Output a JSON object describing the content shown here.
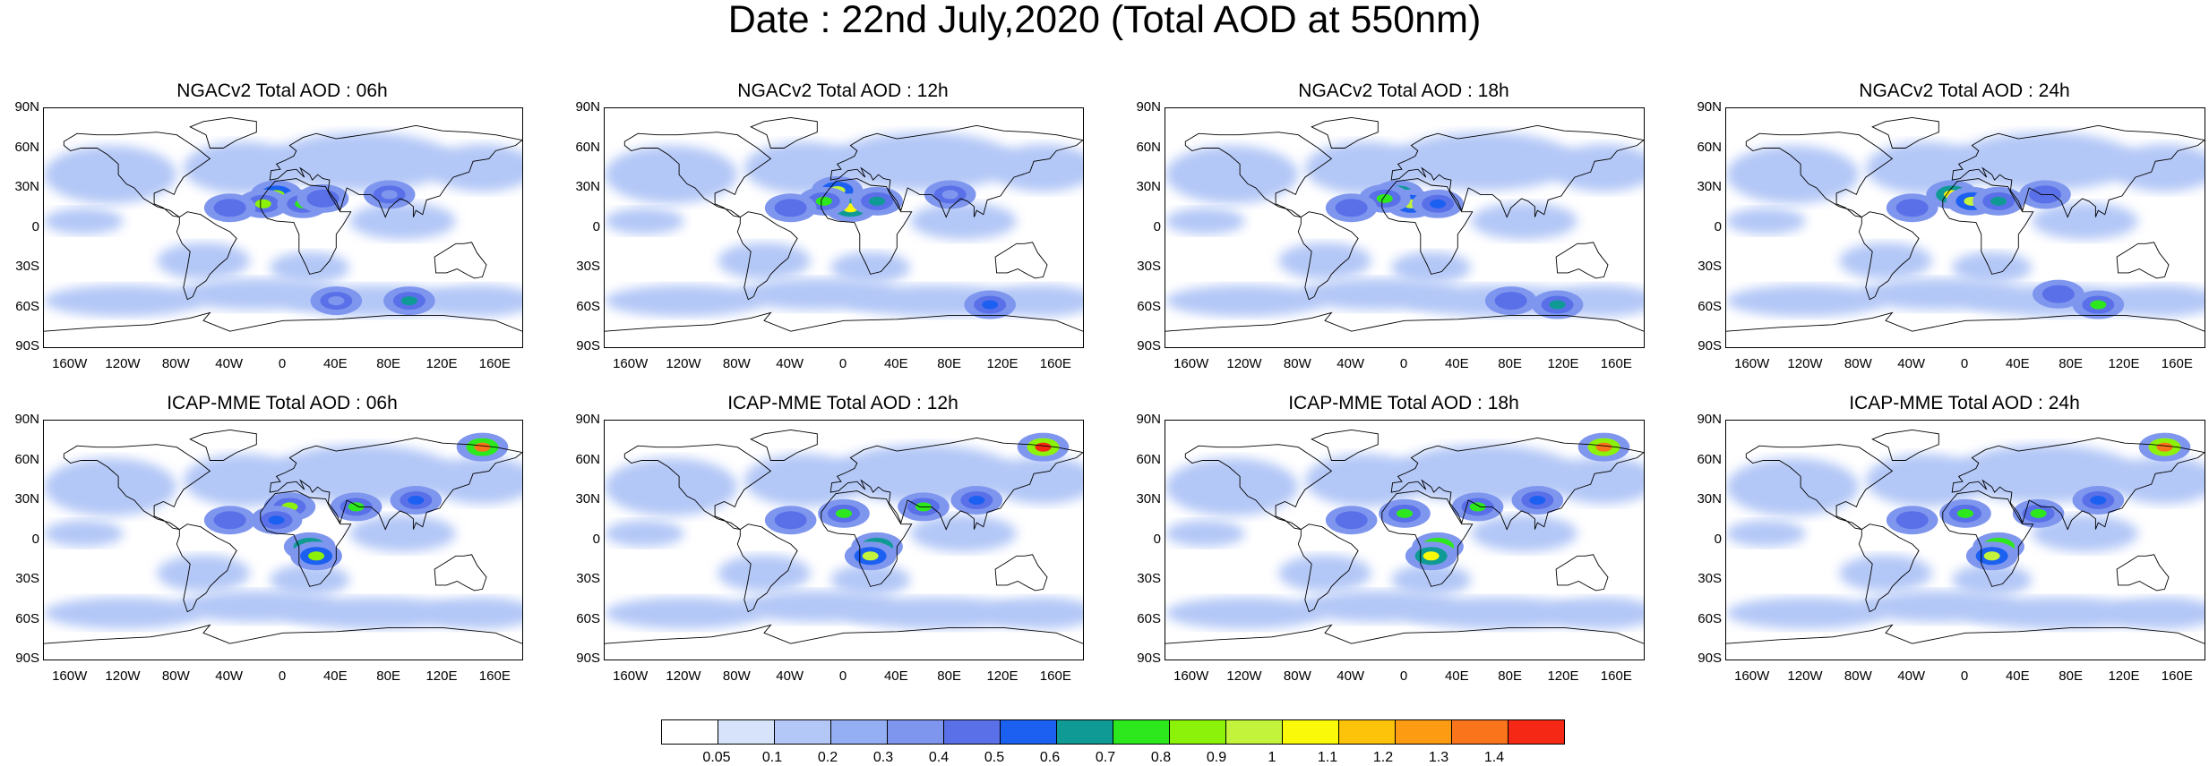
{
  "title": "Date : 22nd July,2020 (Total AOD at 550nm)",
  "panels": [
    {
      "title": "NGACv2 Total AOD : 06h",
      "hotspots": [
        {
          "lon": -5,
          "lat": 25,
          "v": 0.85
        },
        {
          "lon": -15,
          "lat": 18,
          "v": 0.8
        },
        {
          "lon": 15,
          "lat": 18,
          "v": 0.75
        },
        {
          "lon": -40,
          "lat": 15,
          "v": 0.45
        },
        {
          "lon": 30,
          "lat": 22,
          "v": 0.4
        },
        {
          "lon": 80,
          "lat": 25,
          "v": 0.35
        },
        {
          "lon": 95,
          "lat": -55,
          "v": 0.6
        },
        {
          "lon": 40,
          "lat": -55,
          "v": 0.3
        }
      ]
    },
    {
      "title": "NGACv2 Total AOD : 12h",
      "hotspots": [
        {
          "lon": -5,
          "lat": 28,
          "v": 0.95
        },
        {
          "lon": 5,
          "lat": 15,
          "v": 1.0
        },
        {
          "lon": -15,
          "lat": 20,
          "v": 0.7
        },
        {
          "lon": 25,
          "lat": 20,
          "v": 0.6
        },
        {
          "lon": -40,
          "lat": 15,
          "v": 0.45
        },
        {
          "lon": 80,
          "lat": 25,
          "v": 0.3
        },
        {
          "lon": 110,
          "lat": -58,
          "v": 0.55
        }
      ]
    },
    {
      "title": "NGACv2 Total AOD : 18h",
      "hotspots": [
        {
          "lon": -5,
          "lat": 25,
          "v": 1.05
        },
        {
          "lon": 5,
          "lat": 18,
          "v": 0.95
        },
        {
          "lon": -15,
          "lat": 22,
          "v": 0.7
        },
        {
          "lon": 25,
          "lat": 18,
          "v": 0.55
        },
        {
          "lon": -40,
          "lat": 15,
          "v": 0.45
        },
        {
          "lon": 115,
          "lat": -58,
          "v": 0.65
        },
        {
          "lon": 80,
          "lat": -55,
          "v": 0.4
        }
      ]
    },
    {
      "title": "NGACv2 Total AOD : 24h",
      "hotspots": [
        {
          "lon": -10,
          "lat": 25,
          "v": 1.0
        },
        {
          "lon": 5,
          "lat": 20,
          "v": 0.9
        },
        {
          "lon": 25,
          "lat": 20,
          "v": 0.6
        },
        {
          "lon": -40,
          "lat": 15,
          "v": 0.45
        },
        {
          "lon": 60,
          "lat": 25,
          "v": 0.4
        },
        {
          "lon": 100,
          "lat": -58,
          "v": 0.75
        },
        {
          "lon": 70,
          "lat": -50,
          "v": 0.4
        }
      ]
    },
    {
      "title": "ICAP-MME Total AOD : 06h",
      "hotspots": [
        {
          "lon": 20,
          "lat": -5,
          "v": 1.1
        },
        {
          "lon": 25,
          "lat": -12,
          "v": 0.85
        },
        {
          "lon": 5,
          "lat": 25,
          "v": 0.8
        },
        {
          "lon": 55,
          "lat": 25,
          "v": 0.7
        },
        {
          "lon": 150,
          "lat": 70,
          "v": 1.3
        },
        {
          "lon": -5,
          "lat": 15,
          "v": 0.55
        },
        {
          "lon": 100,
          "lat": 30,
          "v": 0.5
        },
        {
          "lon": -40,
          "lat": 15,
          "v": 0.4
        }
      ]
    },
    {
      "title": "ICAP-MME Total AOD : 12h",
      "hotspots": [
        {
          "lon": 25,
          "lat": -5,
          "v": 1.15
        },
        {
          "lon": 20,
          "lat": -12,
          "v": 0.9
        },
        {
          "lon": 0,
          "lat": 20,
          "v": 0.7
        },
        {
          "lon": 60,
          "lat": 25,
          "v": 0.7
        },
        {
          "lon": 150,
          "lat": 70,
          "v": 1.4
        },
        {
          "lon": 100,
          "lat": 30,
          "v": 0.55
        },
        {
          "lon": -40,
          "lat": 15,
          "v": 0.4
        }
      ]
    },
    {
      "title": "ICAP-MME Total AOD : 18h",
      "hotspots": [
        {
          "lon": 25,
          "lat": -5,
          "v": 1.2
        },
        {
          "lon": 20,
          "lat": -12,
          "v": 1.0
        },
        {
          "lon": 0,
          "lat": 20,
          "v": 0.7
        },
        {
          "lon": 55,
          "lat": 25,
          "v": 0.75
        },
        {
          "lon": 150,
          "lat": 70,
          "v": 1.35
        },
        {
          "lon": 100,
          "lat": 30,
          "v": 0.55
        },
        {
          "lon": -40,
          "lat": 15,
          "v": 0.4
        }
      ]
    },
    {
      "title": "ICAP-MME Total AOD : 24h",
      "hotspots": [
        {
          "lon": 25,
          "lat": -5,
          "v": 1.25
        },
        {
          "lon": 20,
          "lat": -12,
          "v": 0.95
        },
        {
          "lon": 0,
          "lat": 20,
          "v": 0.75
        },
        {
          "lon": 55,
          "lat": 20,
          "v": 0.7
        },
        {
          "lon": 150,
          "lat": 70,
          "v": 1.35
        },
        {
          "lon": 100,
          "lat": 30,
          "v": 0.55
        },
        {
          "lon": -40,
          "lat": 15,
          "v": 0.45
        }
      ]
    }
  ],
  "lat_ticks": [
    "90N",
    "60N",
    "30N",
    "0",
    "30S",
    "60S",
    "90S"
  ],
  "lon_ticks": [
    "160W",
    "120W",
    "80W",
    "40W",
    "0",
    "40E",
    "80E",
    "120E",
    "160E"
  ],
  "lon_tick_values": [
    -160,
    -120,
    -80,
    -40,
    0,
    40,
    80,
    120,
    160
  ],
  "colorbar": {
    "labels": [
      "0.05",
      "0.1",
      "0.2",
      "0.3",
      "0.4",
      "0.5",
      "0.6",
      "0.7",
      "0.8",
      "0.9",
      "1",
      "1.1",
      "1.2",
      "1.3",
      "1.4"
    ],
    "colors": [
      "#ffffff",
      "#d7e3fb",
      "#b4c8f7",
      "#94aff4",
      "#7f96ee",
      "#5a70e8",
      "#1c60f2",
      "#0f9a96",
      "#2ee81e",
      "#8cf20a",
      "#c3f33a",
      "#fbf90a",
      "#fdc20a",
      "#fd9c12",
      "#f9741a",
      "#f42814"
    ]
  }
}
